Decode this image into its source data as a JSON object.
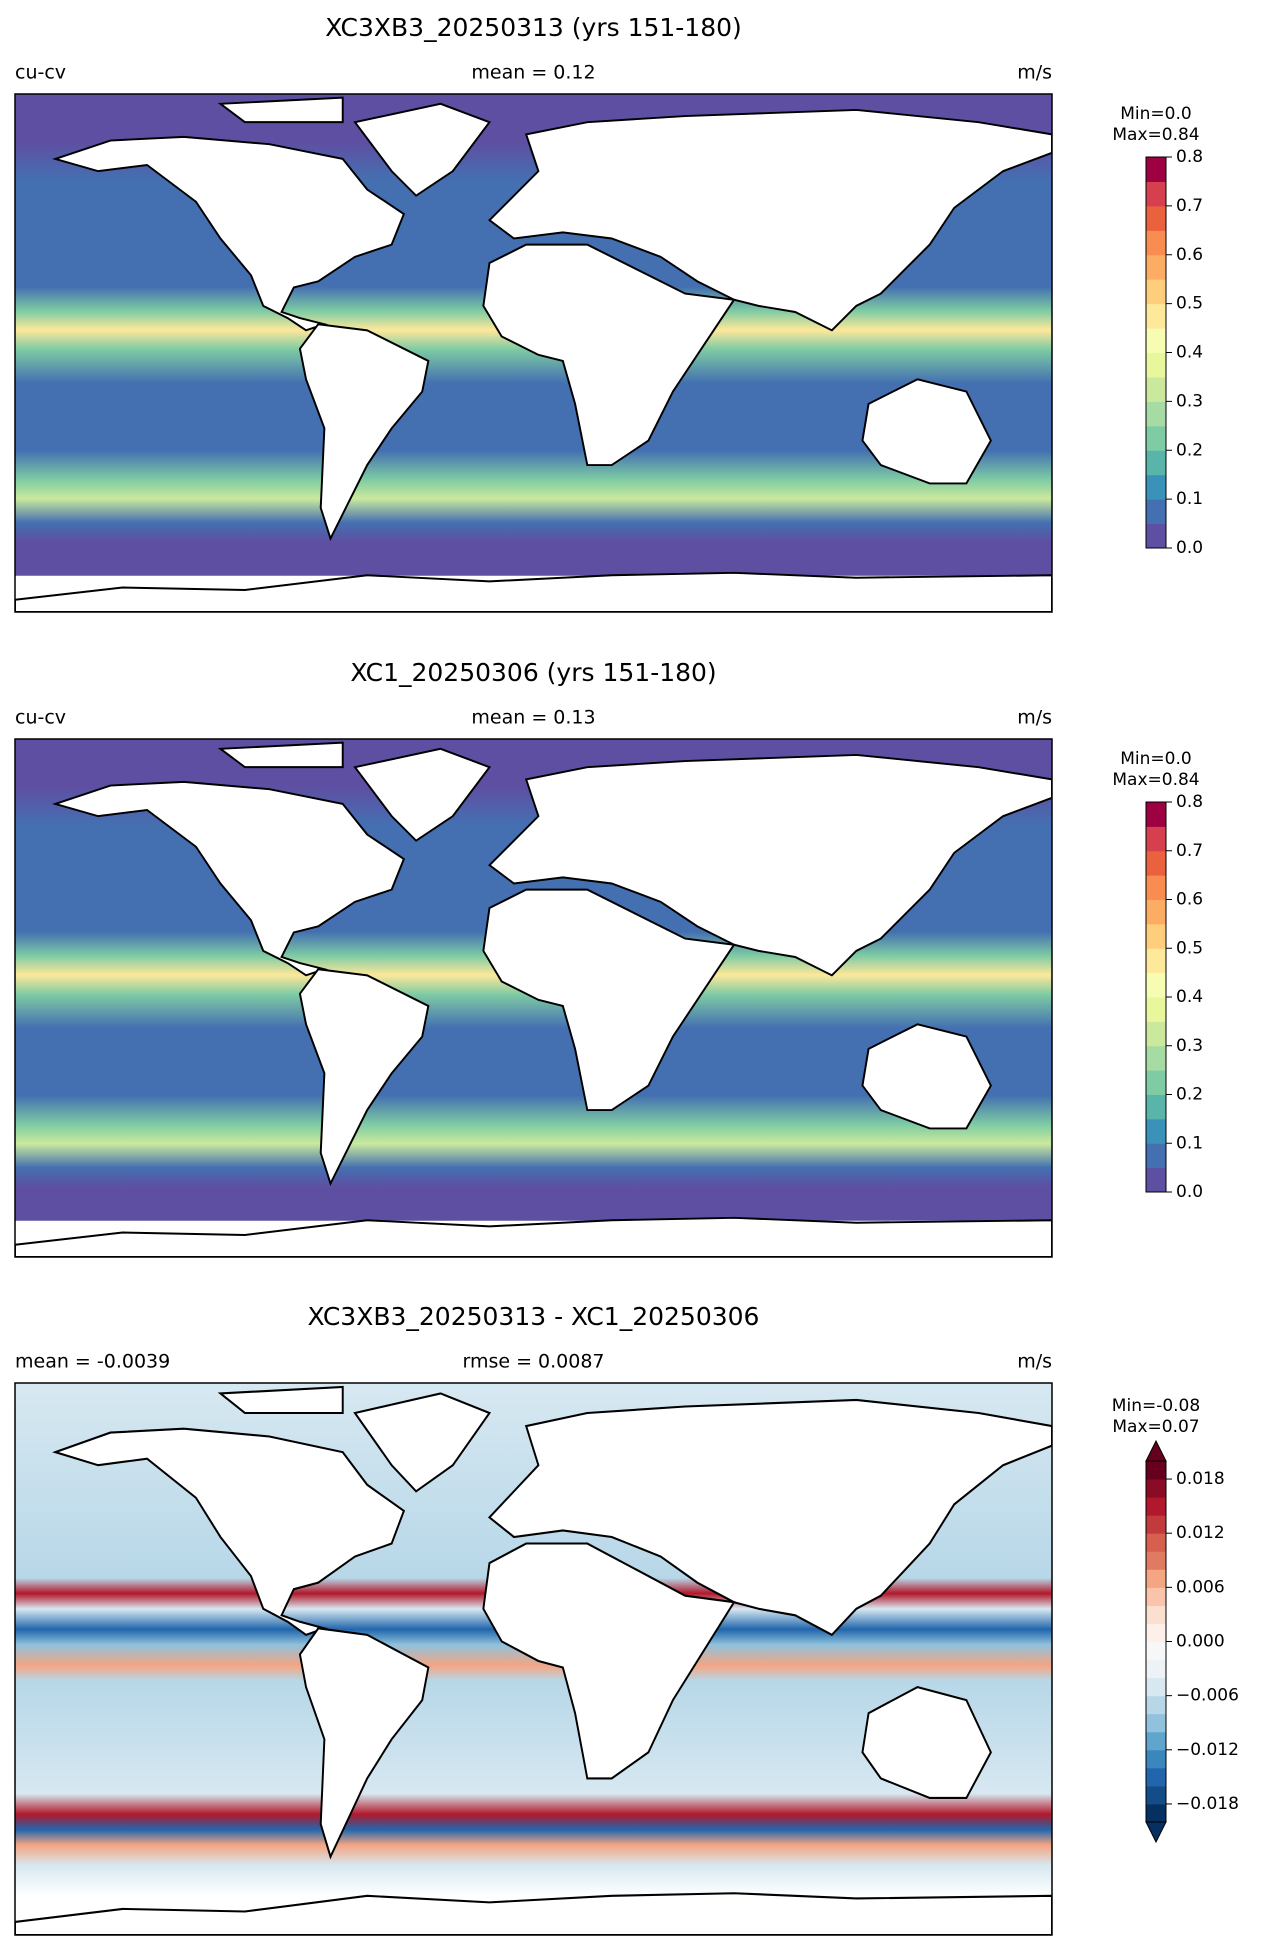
{
  "panels": [
    {
      "title": "XC3XB3_20250313 (yrs 151-180)",
      "left": "cu-cv",
      "center": "mean = 0.12",
      "right": "m/s",
      "min_text": "Min=0.0",
      "max_text": "Max=0.84",
      "colorbar": {
        "ylim": [
          0,
          0.8
        ],
        "extend": "neither",
        "yticks": [
          {
            "value": 0,
            "label": "0.0"
          },
          0.1,
          0.2,
          0.3,
          0.4,
          0.5,
          0.6,
          0.7,
          0.8
        ],
        "colors": [
          "#5e4fa2",
          "#4470b1",
          "#3b92b8",
          "#59b4aa",
          "#7ecba4",
          "#a6dba4",
          "#cae99d",
          "#e8f69c",
          "#f7fcb3",
          "#fee89a",
          "#fece7c",
          "#fdac63",
          "#f88c51",
          "#e9613d",
          "#d6404e",
          "#9e0142"
        ]
      }
    },
    {
      "title": "XC1_20250306 (yrs 151-180)",
      "left": "cu-cv",
      "center": "mean = 0.13",
      "right": "m/s",
      "min_text": "Min=0.0",
      "max_text": "Max=0.84",
      "colorbar": {
        "ylim": [
          0,
          0.8
        ],
        "extend": "neither",
        "yticks": [
          {
            "value": 0,
            "label": "0.0"
          },
          0.1,
          0.2,
          0.3,
          0.4,
          0.5,
          0.6,
          0.7,
          0.8
        ],
        "colors": [
          "#5e4fa2",
          "#4470b1",
          "#3b92b8",
          "#59b4aa",
          "#7ecba4",
          "#a6dba4",
          "#cae99d",
          "#e8f69c",
          "#f7fcb3",
          "#fee89a",
          "#fece7c",
          "#fdac63",
          "#f88c51",
          "#e9613d",
          "#d6404e",
          "#9e0142"
        ]
      }
    },
    {
      "title": "XC3XB3_20250313 - XC1_20250306",
      "left": "mean = -0.0039",
      "center": "rmse = 0.0087",
      "right": "m/s",
      "min_text": "Min=-0.08",
      "max_text": "Max=0.07",
      "colorbar": {
        "ylim": [
          -0.02,
          0.02
        ],
        "extend": "both",
        "yticks": [
          {
            "value": -0.018,
            "label": "−0.018"
          },
          {
            "value": -0.012,
            "label": "−0.012"
          },
          {
            "value": -0.006,
            "label": "−0.006"
          },
          {
            "value": 0,
            "label": "0.000"
          },
          0.006,
          0.012,
          0.018
        ],
        "colors": [
          "#053061",
          "#134c87",
          "#2166ac",
          "#3a87bd",
          "#5fa5cd",
          "#90c2dd",
          "#b7d7e8",
          "#d7e8f1",
          "#ecf2f5",
          "#f7f7f7",
          "#fdf0e8",
          "#fbe0d0",
          "#f9c4aa",
          "#f4a582",
          "#e07b62",
          "#d6604d",
          "#c13b3d",
          "#b2182b",
          "#8a0b25",
          "#67001f"
        ]
      }
    }
  ]
}
